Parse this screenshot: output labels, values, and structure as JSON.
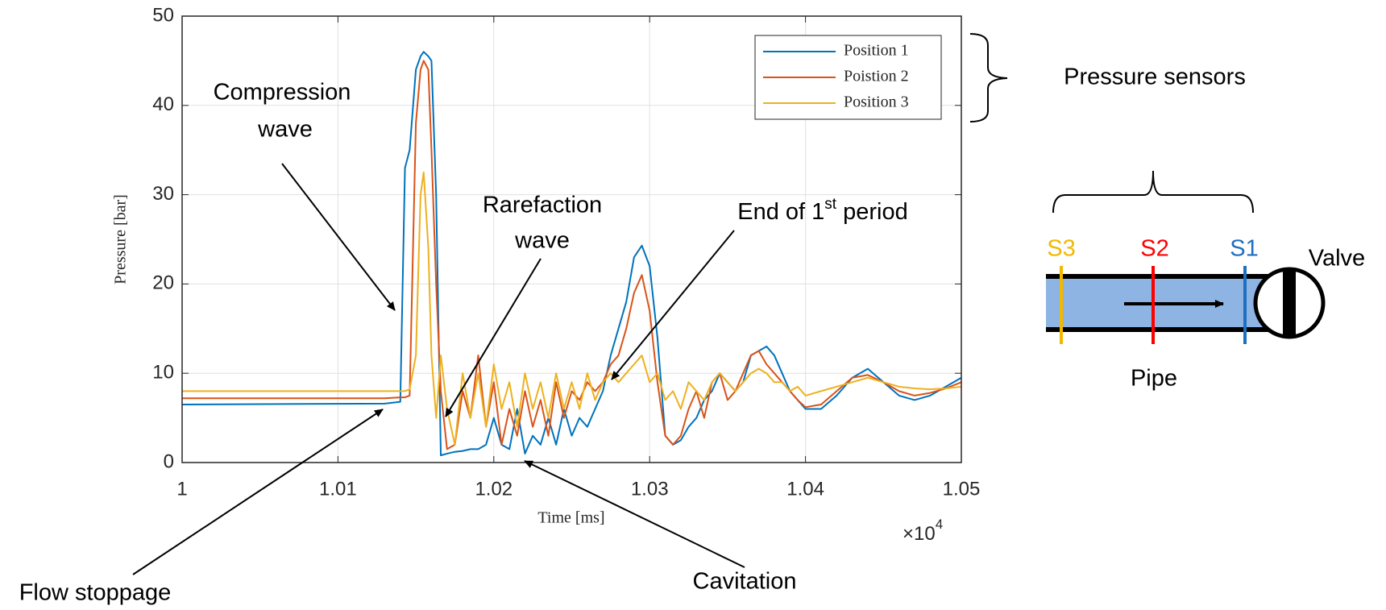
{
  "chart_data": {
    "type": "line",
    "ylabel": "Pressure [bar]",
    "xlabel": "Time [ms]",
    "x_multiplier": "×10",
    "x_multiplier_exponent": "4",
    "xlim": [
      10000,
      10500
    ],
    "xticks": [
      {
        "value": 10000,
        "label": "1"
      },
      {
        "value": 10100,
        "label": "1.01"
      },
      {
        "value": 10200,
        "label": "1.02"
      },
      {
        "value": 10300,
        "label": "1.03"
      },
      {
        "value": 10400,
        "label": "1.04"
      },
      {
        "value": 10500,
        "label": "1.05"
      }
    ],
    "ylim": [
      0,
      50
    ],
    "yticks": [
      0,
      10,
      20,
      30,
      40,
      50
    ],
    "grid": true,
    "legend": "upper right",
    "x": [
      10000,
      10130,
      10140,
      10143,
      10146,
      10150,
      10153,
      10155,
      10158,
      10160,
      10163,
      10166,
      10170,
      10175,
      10180,
      10185,
      10190,
      10195,
      10200,
      10205,
      10210,
      10215,
      10220,
      10225,
      10230,
      10235,
      10240,
      10245,
      10250,
      10255,
      10260,
      10265,
      10270,
      10275,
      10280,
      10285,
      10290,
      10295,
      10300,
      10305,
      10310,
      10315,
      10320,
      10325,
      10330,
      10335,
      10340,
      10345,
      10350,
      10355,
      10360,
      10365,
      10370,
      10375,
      10380,
      10385,
      10390,
      10395,
      10400,
      10410,
      10420,
      10430,
      10440,
      10450,
      10460,
      10470,
      10480,
      10490,
      10500
    ],
    "series": [
      {
        "name": "Position 1",
        "color": "#0072bd",
        "values": [
          6.5,
          6.6,
          6.8,
          33,
          35,
          44,
          45.5,
          46,
          45.5,
          45,
          30,
          0.8,
          1,
          1.2,
          1.3,
          1.5,
          1.5,
          2,
          5,
          2,
          1.5,
          6,
          1,
          3,
          2,
          5,
          2,
          6,
          3,
          5,
          4,
          6,
          8,
          12,
          15,
          18,
          23,
          24.3,
          22,
          14,
          3,
          2,
          2.5,
          4,
          5,
          7,
          8,
          10,
          9,
          8,
          9,
          12,
          12.5,
          13,
          12,
          10,
          8,
          7,
          6,
          6,
          7.5,
          9.5,
          10.5,
          9,
          7.5,
          7,
          7.5,
          8.5,
          9.5
        ]
      },
      {
        "name": "Poistion 2",
        "color": "#d95319",
        "values": [
          7.2,
          7.2,
          7.3,
          7.3,
          7.5,
          38,
          44,
          45,
          44,
          35,
          20,
          8,
          1.5,
          2,
          8,
          5,
          12,
          4,
          9,
          2,
          6,
          3,
          8,
          4,
          7,
          3,
          9,
          5,
          8,
          7,
          9,
          8,
          9,
          11,
          12,
          15,
          19,
          21,
          17,
          9,
          3,
          2,
          3,
          6,
          8,
          5,
          9,
          10,
          7,
          8,
          10,
          12,
          12.5,
          11,
          10,
          9,
          8,
          7,
          6.2,
          6.5,
          8,
          9.5,
          9.8,
          9,
          8,
          7.5,
          7.8,
          8.3,
          9
        ]
      },
      {
        "name": "Position 3",
        "color": "#edb120",
        "values": [
          8,
          8,
          8,
          8,
          8.2,
          12,
          30,
          32.5,
          24,
          12,
          5,
          12,
          6,
          2,
          10,
          5,
          10,
          4,
          11,
          6,
          9,
          4,
          10,
          6,
          9,
          5,
          10,
          6,
          9,
          6,
          10,
          7,
          9,
          10,
          9,
          10,
          11,
          12,
          9,
          10,
          7,
          8,
          6,
          9,
          8,
          7,
          9,
          10,
          9,
          8,
          9,
          10,
          10.5,
          10,
          9,
          9,
          8,
          8.5,
          7.5,
          8,
          8.5,
          9,
          9.5,
          9,
          8.5,
          8.3,
          8.2,
          8.3,
          8.5
        ]
      }
    ],
    "annotations": {
      "compression": [
        "Compression",
        "wave"
      ],
      "rarefaction": [
        "Rarefaction",
        "wave"
      ],
      "end_period": [
        "End of 1",
        "st",
        " period"
      ],
      "cavitation": "Cavitation",
      "flow_stoppage": "Flow stoppage"
    }
  },
  "diagram": {
    "sensors_label": "Pressure sensors",
    "sensors": [
      "S3",
      "S2",
      "S1"
    ],
    "valve": "Valve",
    "pipe": "Pipe"
  }
}
